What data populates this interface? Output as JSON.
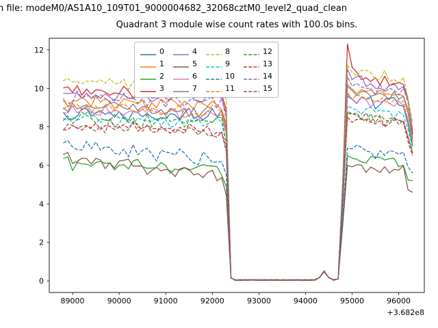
{
  "figure": {
    "suptitle": "n file: modeM0/AS1A10_109T01_9000004682_32068cztM0_level2_quad_clean",
    "title": "Quadrant 3 module wise count rates with 100.0s bins."
  },
  "chart_data": {
    "type": "line",
    "suptitle": "n file: modeM0/AS1A10_109T01_9000004682_32068cztM0_level2_quad_clean",
    "title": "Quadrant 3 module wise count rates with 100.0s bins.",
    "xlabel": "",
    "ylabel": "",
    "x_offset_label": "+3.682e8",
    "x_offset_value": 368200000,
    "bin_seconds": 100.0,
    "xlim": [
      88500,
      96550
    ],
    "ylim": [
      -0.6,
      12.6
    ],
    "x_ticks": [
      89000,
      90000,
      91000,
      92000,
      93000,
      94000,
      95000,
      96000
    ],
    "y_ticks": [
      0,
      2,
      4,
      6,
      8,
      10,
      12
    ],
    "grid": false,
    "legend": {
      "position": "upper center",
      "columns": 4,
      "rows": 4
    },
    "x_start": 88800,
    "x_end": 96300,
    "events": {
      "dropout_start": 92400,
      "dropout_end": 94700,
      "bump_x": 94400,
      "bump_value": 0.5,
      "reentry_peak_x": 94900,
      "max_peak_value": 12.3
    },
    "series": [
      {
        "name": "0",
        "color": "#1f77b4",
        "dashed": false,
        "pre": 8.8,
        "pre_trend": -0.2,
        "post": 9.4,
        "spike": 0.2,
        "end": 7.0
      },
      {
        "name": "1",
        "color": "#ff7f0e",
        "dashed": false,
        "pre": 9.3,
        "pre_trend": -0.2,
        "post": 9.9,
        "spike": 0.3,
        "end": 7.4
      },
      {
        "name": "2",
        "color": "#2ca02c",
        "dashed": false,
        "pre": 6.1,
        "pre_trend": -0.3,
        "post": 6.4,
        "spike": 0.1,
        "end": 5.2
      },
      {
        "name": "3",
        "color": "#d62728",
        "dashed": false,
        "pre": 9.9,
        "pre_trend": -0.1,
        "post": 10.5,
        "spike": 1.8,
        "end": 7.6
      },
      {
        "name": "4",
        "color": "#9467bd",
        "dashed": false,
        "pre": 9.7,
        "pre_trend": -0.2,
        "post": 10.3,
        "spike": 0.7,
        "end": 7.8
      },
      {
        "name": "5",
        "color": "#8c564b",
        "dashed": false,
        "pre": 6.4,
        "pre_trend": -1.0,
        "post": 5.9,
        "spike": 0.1,
        "end": 4.6
      },
      {
        "name": "6",
        "color": "#e377c2",
        "dashed": false,
        "pre": 8.9,
        "pre_trend": -0.3,
        "post": 9.4,
        "spike": 0.3,
        "end": 7.2
      },
      {
        "name": "7",
        "color": "#7f7f7f",
        "dashed": false,
        "pre": 9.1,
        "pre_trend": -0.3,
        "post": 9.7,
        "spike": 0.4,
        "end": 7.4
      },
      {
        "name": "8",
        "color": "#bcbd22",
        "dashed": true,
        "pre": 10.4,
        "pre_trend": -0.2,
        "post": 10.7,
        "spike": 0.5,
        "end": 8.2
      },
      {
        "name": "9",
        "color": "#17becf",
        "dashed": true,
        "pre": 8.4,
        "pre_trend": -0.2,
        "post": 8.9,
        "spike": 0.2,
        "end": 6.9
      },
      {
        "name": "10",
        "color": "#1f77b4",
        "dashed": true,
        "pre": 7.0,
        "pre_trend": -0.7,
        "post": 6.8,
        "spike": 0.1,
        "end": 5.6
      },
      {
        "name": "11",
        "color": "#ff7f0e",
        "dashed": true,
        "pre": 9.0,
        "pre_trend": -0.3,
        "post": 9.5,
        "spike": 0.3,
        "end": 7.3
      },
      {
        "name": "12",
        "color": "#2ca02c",
        "dashed": true,
        "pre": 8.4,
        "pre_trend": -0.2,
        "post": 8.6,
        "spike": 0.2,
        "end": 6.7
      },
      {
        "name": "13",
        "color": "#d62728",
        "dashed": true,
        "pre": 8.1,
        "pre_trend": -0.3,
        "post": 8.3,
        "spike": 0.2,
        "end": 6.5
      },
      {
        "name": "14",
        "color": "#9467bd",
        "dashed": true,
        "pre": 9.5,
        "pre_trend": -0.2,
        "post": 10.1,
        "spike": 0.5,
        "end": 7.7
      },
      {
        "name": "15",
        "color": "#8c564b",
        "dashed": true,
        "pre": 8.1,
        "pre_trend": -0.3,
        "post": 8.5,
        "spike": 0.2,
        "end": 6.6
      }
    ]
  }
}
